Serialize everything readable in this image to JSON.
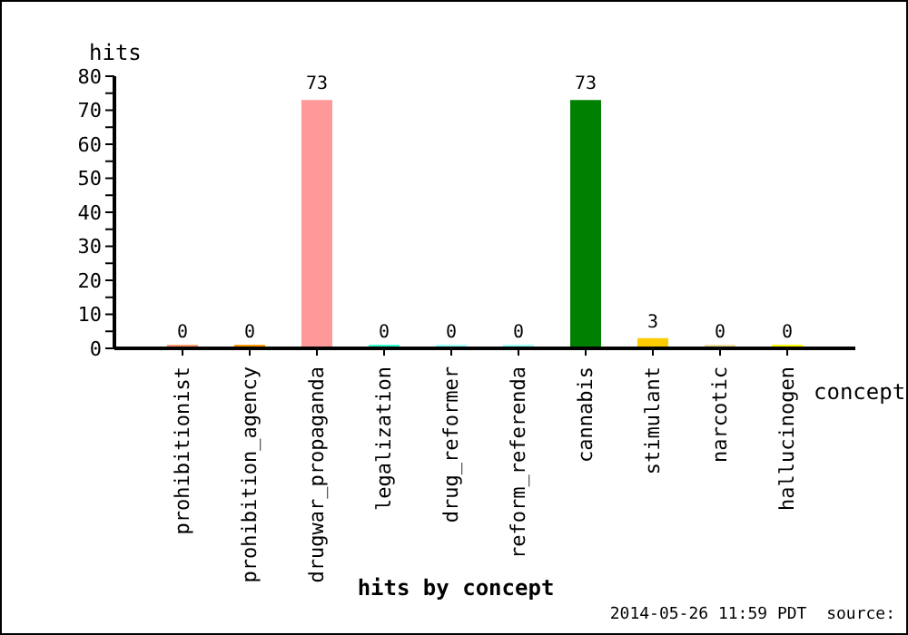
{
  "chart_data": {
    "type": "bar",
    "title": "hits by concept",
    "xlabel": "concept",
    "ylabel": "hits",
    "categories": [
      "prohibitionist",
      "prohibition_agency",
      "drugwar_propaganda",
      "legalization",
      "drug_reformer",
      "reform_referenda",
      "cannabis",
      "stimulant",
      "narcotic",
      "hallucinogen"
    ],
    "values": [
      0,
      0,
      73,
      0,
      0,
      0,
      73,
      3,
      0,
      0
    ],
    "colors": [
      "#ff9966",
      "#ff9900",
      "#ff9999",
      "#33ffcc",
      "#99ffff",
      "#99ffff",
      "#008000",
      "#ffcc00",
      "#eedd99",
      "#ffff00"
    ],
    "ylim": [
      0,
      80
    ],
    "yticks": [
      0,
      {
        "value": 5,
        "label": null
      },
      10,
      {
        "value": 15,
        "label": null
      },
      20,
      {
        "value": 25,
        "label": null
      },
      30,
      {
        "value": 35,
        "label": null
      },
      40,
      {
        "value": 45,
        "label": null
      },
      50,
      {
        "value": 55,
        "label": null
      },
      60,
      {
        "value": 65,
        "label": null
      },
      70,
      {
        "value": 75,
        "label": null
      },
      80
    ],
    "data_labels": true,
    "grid": false,
    "legend": false,
    "annotations": [
      "2014-05-26 11:59 PDT  source:"
    ]
  }
}
